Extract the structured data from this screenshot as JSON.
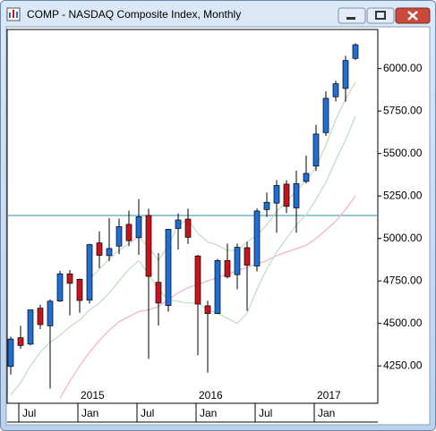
{
  "window": {
    "title": "COMP - NASDAQ Composite Index, Monthly"
  },
  "chart_data": {
    "type": "candlestick",
    "categories": [
      null,
      "Jul",
      null,
      null,
      null,
      null,
      null,
      "Jan",
      null,
      null,
      null,
      null,
      null,
      "Jul",
      null,
      null,
      null,
      null,
      null,
      "Jan",
      null,
      null,
      null,
      null,
      null,
      "Jul",
      null,
      null,
      null,
      null,
      null,
      "Jan",
      null,
      null,
      null,
      null
    ],
    "years": [
      null,
      null,
      null,
      null,
      null,
      null,
      null,
      "2015",
      null,
      null,
      null,
      null,
      null,
      null,
      null,
      null,
      null,
      null,
      null,
      "2016",
      null,
      null,
      null,
      null,
      null,
      null,
      null,
      null,
      null,
      null,
      null,
      "2017",
      null,
      null,
      null,
      null
    ],
    "open": [
      4247,
      4416,
      4378,
      4590,
      4486,
      4632,
      4792,
      4760,
      4637,
      4974,
      4899,
      4955,
      5083,
      5005,
      5136,
      4742,
      4605,
      5059,
      5114,
      4897,
      4604,
      4558,
      4870,
      4787,
      4946,
      4838,
      5170,
      5208,
      5320,
      5180,
      5336,
      5426,
      5623,
      5834,
      5883,
      6060
    ],
    "high": [
      4422,
      4486,
      4580,
      4610,
      4641,
      4810,
      4814,
      4764,
      4969,
      5042,
      5120,
      5117,
      5164,
      5232,
      5176,
      4914,
      5057,
      5147,
      5176,
      4903,
      4634,
      4880,
      4970,
      4970,
      4981,
      5176,
      5271,
      5343,
      5343,
      5399,
      5487,
      5669,
      5866,
      5928,
      6075,
      6150
    ],
    "low": [
      4199,
      4351,
      4372,
      4466,
      4117,
      4626,
      4547,
      4563,
      4616,
      4825,
      4866,
      4908,
      4955,
      4904,
      4292,
      4487,
      4569,
      4935,
      4968,
      4313,
      4210,
      4555,
      4765,
      4701,
      4574,
      4806,
      5127,
      5034,
      5150,
      5034,
      5325,
      5397,
      5603,
      5806,
      5805,
      6050
    ],
    "close": [
      4408,
      4370,
      4580,
      4493,
      4631,
      4792,
      4736,
      4635,
      4964,
      4901,
      4941,
      5070,
      4987,
      5128,
      4777,
      4620,
      5054,
      5109,
      5007,
      4614,
      4558,
      4870,
      4775,
      4948,
      4843,
      5162,
      5213,
      5312,
      5189,
      5323,
      5383,
      5615,
      5825,
      5911,
      6048,
      6140
    ],
    "up_color": "#1f6fd6",
    "down_color": "#c8141c",
    "lines": [
      {
        "color": "#c4dfc4",
        "values": [
          4080,
          4150,
          4250,
          4330,
          4390,
          4430,
          4480,
          4520,
          4580,
          4620,
          4680,
          4750,
          4820,
          4870,
          4790,
          4700,
          4640,
          4630,
          4620,
          4620,
          4580,
          4560,
          4530,
          4500,
          4560,
          4700,
          4820,
          4920,
          5000,
          5080,
          5140,
          5230,
          5330,
          5460,
          5580,
          5720
        ]
      },
      {
        "color": "#c4dfc4",
        "values": [
          null,
          null,
          null,
          null,
          null,
          null,
          null,
          null,
          4760,
          4820,
          4880,
          4930,
          4970,
          5010,
          4950,
          4870,
          4960,
          5080,
          5110,
          5030,
          4980,
          4960,
          4930,
          4930,
          4980,
          5020,
          5080,
          5160,
          5220,
          5280,
          5340,
          5420,
          5550,
          5700,
          5820,
          5920
        ]
      },
      {
        "color": "#f2b5c8",
        "values": [
          null,
          null,
          null,
          null,
          null,
          4060,
          4160,
          4250,
          4330,
          4400,
          4460,
          4510,
          4540,
          4570,
          4580,
          4600,
          4640,
          4680,
          4710,
          4730,
          4750,
          4770,
          4790,
          4810,
          4830,
          4850,
          4870,
          4900,
          4920,
          4940,
          4960,
          5000,
          5050,
          5100,
          5170,
          5250
        ]
      }
    ],
    "hline": {
      "value": 5135,
      "color": "#2b8fa8"
    },
    "ylim": [
      4030,
      6230
    ],
    "yticks": [
      {
        "value": 4250,
        "label": "4250.00"
      },
      {
        "value": 4500,
        "label": "4500.00"
      },
      {
        "value": 4750,
        "label": "4750.00"
      },
      {
        "value": 5000,
        "label": "5000.00"
      },
      {
        "value": 5250,
        "label": "5250.00"
      },
      {
        "value": 5500,
        "label": "5500.00"
      },
      {
        "value": 5750,
        "label": "5750.00"
      },
      {
        "value": 6000,
        "label": "6000.00"
      }
    ]
  }
}
